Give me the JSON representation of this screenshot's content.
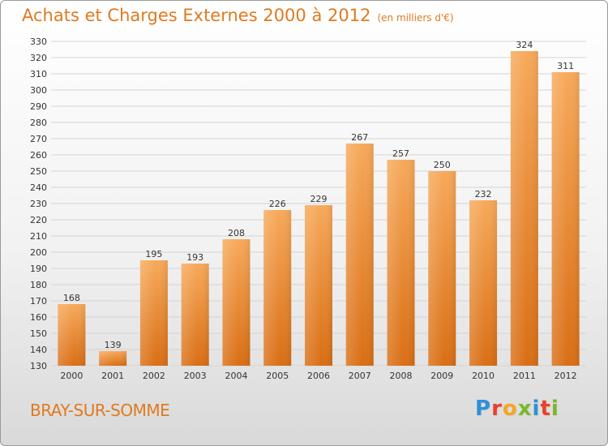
{
  "header": {
    "title": "Achats et Charges Externes 2000 à 2012",
    "subtitle": "(en milliers d'€)"
  },
  "footer": {
    "place": "BRAY-SUR-SOMME",
    "logo_letters": [
      "P",
      "r",
      "o",
      "x",
      "i",
      "t",
      "i"
    ],
    "logo_colors": [
      "#2f8fd6",
      "#e8402a",
      "#f5a623",
      "#7ab829",
      "#2f8fd6",
      "#e8402a",
      "#7ab829"
    ]
  },
  "colors": {
    "bar_top": "#f7a95a",
    "bar_bottom": "#d96e14",
    "grid": "#d4d4d4",
    "axis_text": "#333333",
    "title": "#e07a20"
  },
  "chart_data": {
    "type": "bar",
    "categories": [
      "2000",
      "2001",
      "2002",
      "2003",
      "2004",
      "2005",
      "2006",
      "2007",
      "2008",
      "2009",
      "2010",
      "2011",
      "2012"
    ],
    "values": [
      168,
      139,
      195,
      193,
      208,
      226,
      229,
      267,
      257,
      250,
      232,
      324,
      311
    ],
    "ylim": [
      130,
      330
    ],
    "yticks": [
      130,
      140,
      150,
      160,
      170,
      180,
      190,
      200,
      210,
      220,
      230,
      240,
      250,
      260,
      270,
      280,
      290,
      300,
      310,
      320,
      330
    ],
    "grid": true,
    "data_labels": true
  }
}
